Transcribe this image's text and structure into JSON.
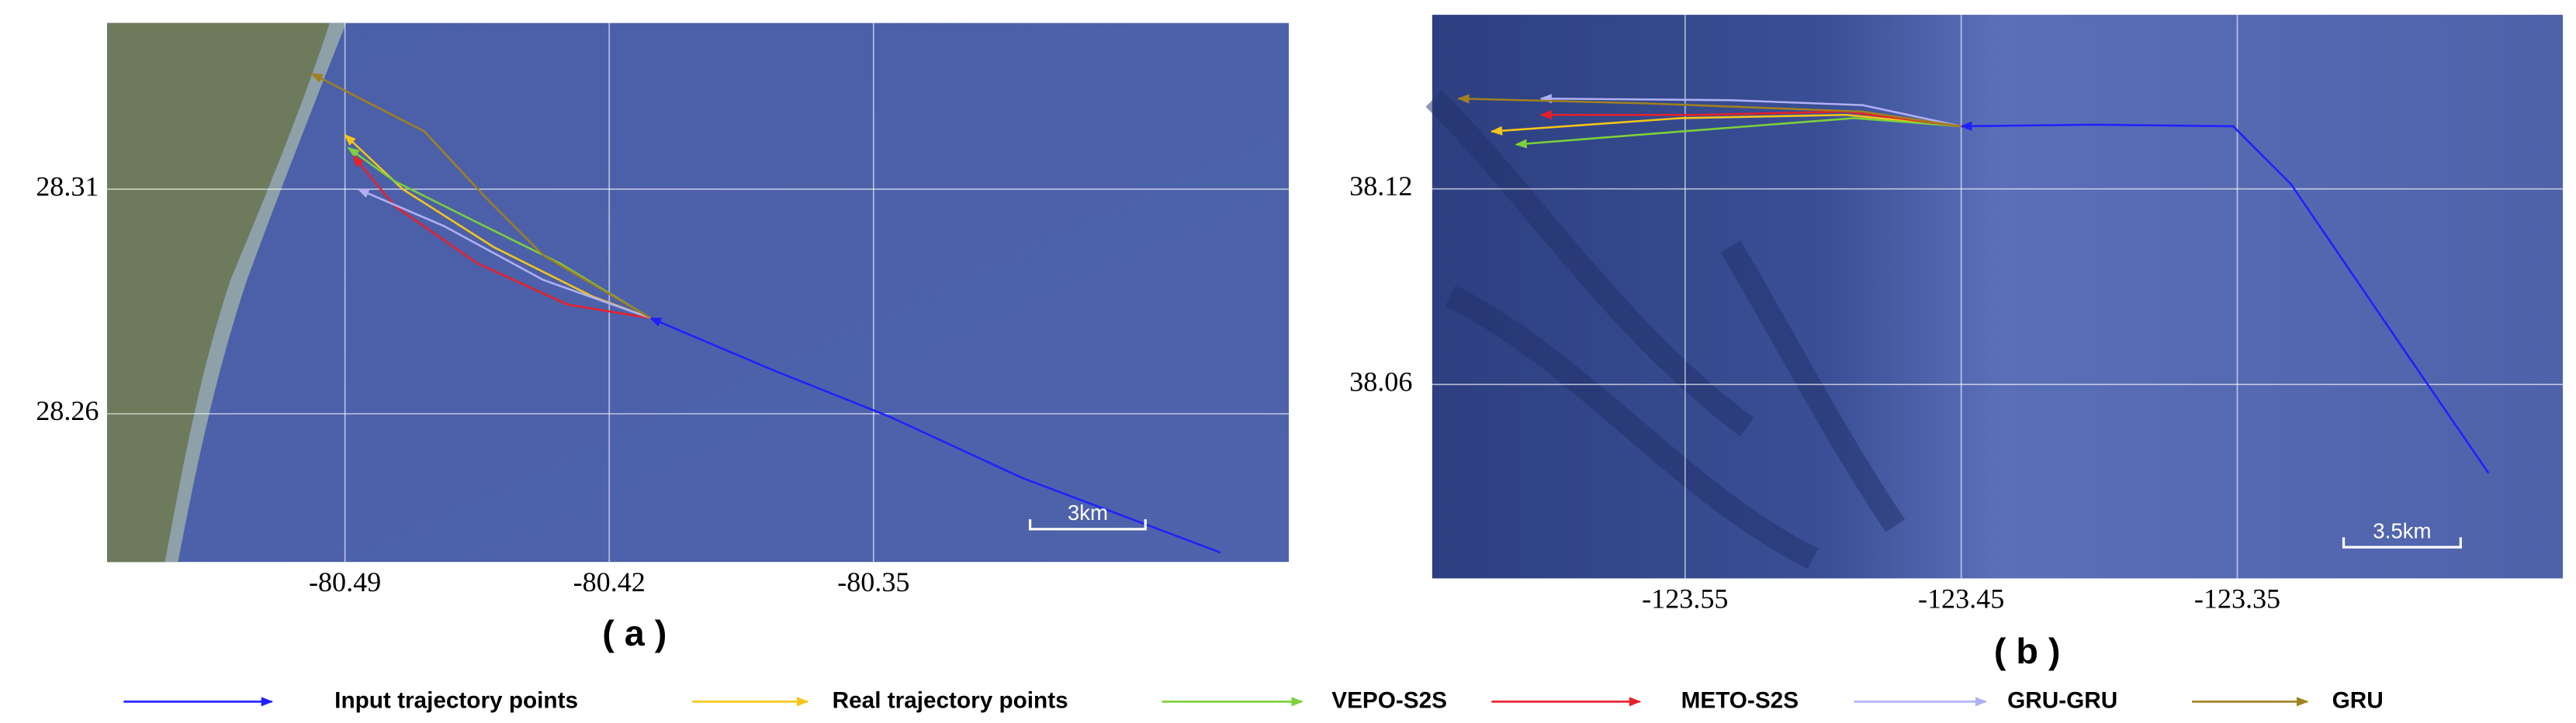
{
  "chart_data": [
    {
      "type": "line",
      "title": "( a )",
      "annotation": "3km",
      "xlim": [
        -80.553,
        -80.24
      ],
      "ylim": [
        28.227,
        28.347
      ],
      "xticks": [
        -80.49,
        -80.42,
        -80.35
      ],
      "yticks": [
        28.31,
        28.26
      ],
      "grid": true,
      "series": [
        {
          "name": "Input trajectory points",
          "color": "#2020ff",
          "x": [
            -80.2581,
            -80.3106,
            -80.3456,
            -80.3763,
            -80.4091
          ],
          "values": [
            28.2291,
            28.2457,
            28.2593,
            28.2696,
            28.2813
          ]
        },
        {
          "name": "Real trajectory points",
          "color": "#f5c518",
          "x": [
            -80.4091,
            -80.4244,
            -80.4506,
            -80.4747,
            -80.49
          ],
          "values": [
            28.2813,
            28.2861,
            28.2971,
            28.31,
            28.3221
          ]
        },
        {
          "name": "VEPO-S2S",
          "color": "#7bd13b",
          "x": [
            -80.4091,
            -80.4331,
            -80.455,
            -80.4769,
            -80.4891
          ],
          "values": [
            28.2813,
            28.2935,
            28.3026,
            28.3118,
            28.3192
          ]
        },
        {
          "name": "METO-S2S",
          "color": "#e8202a",
          "x": [
            -80.4091,
            -80.431,
            -80.455,
            -80.4769,
            -80.4878
          ],
          "values": [
            28.2813,
            28.2843,
            28.2935,
            28.3063,
            28.3174
          ]
        },
        {
          "name": "GRU-GRU",
          "color": "#b0b0f5",
          "x": [
            -80.4091,
            -80.4375,
            -80.4638,
            -80.4865
          ],
          "values": [
            28.2813,
            28.2898,
            28.3018,
            28.31
          ]
        },
        {
          "name": "GRU",
          "color": "#a08020",
          "x": [
            -80.4091,
            -80.4375,
            -80.4528,
            -80.469,
            -80.4988
          ],
          "values": [
            28.2813,
            28.2953,
            28.3082,
            28.3229,
            28.3357
          ]
        }
      ]
    },
    {
      "type": "line",
      "title": "( b )",
      "annotation": "3.5km",
      "xlim": [
        -123.6416,
        -123.2321
      ],
      "ylim": [
        38.0005,
        38.1734
      ],
      "xticks": [
        -123.55,
        -123.45,
        -123.35
      ],
      "yticks": [
        38.12,
        38.06
      ],
      "grid": true,
      "series": [
        {
          "color": "#2020ff",
          "x": [
            -123.259,
            -123.2888,
            -123.3306,
            -123.3515,
            -123.4022,
            -123.45
          ],
          "values": [
            38.0328,
            38.0696,
            38.1215,
            38.1392,
            38.1397,
            38.1392
          ]
        },
        {
          "color": "#f5c518",
          "x": [
            -123.45,
            -123.4918,
            -123.5515,
            -123.6201
          ],
          "values": [
            38.1392,
            38.1427,
            38.1417,
            38.1376
          ]
        },
        {
          "color": "#7bd13b",
          "x": [
            -123.45,
            -123.4888,
            -123.5515,
            -123.6112
          ],
          "values": [
            38.1392,
            38.1417,
            38.1376,
            38.1336
          ]
        },
        {
          "color": "#e8202a",
          "x": [
            -123.45,
            -123.4918,
            -123.5455,
            -123.6022
          ],
          "values": [
            38.1392,
            38.1437,
            38.1427,
            38.1427
          ]
        },
        {
          "color": "#b0b0f5",
          "x": [
            -123.45,
            -123.4858,
            -123.5336,
            -123.6022
          ],
          "values": [
            38.1392,
            38.1457,
            38.1472,
            38.1477
          ]
        },
        {
          "color": "#a08020",
          "x": [
            -123.45,
            -123.4858,
            -123.5634,
            -123.6321
          ],
          "values": [
            38.1392,
            38.1437,
            38.1462,
            38.1477
          ]
        }
      ]
    }
  ]
}
